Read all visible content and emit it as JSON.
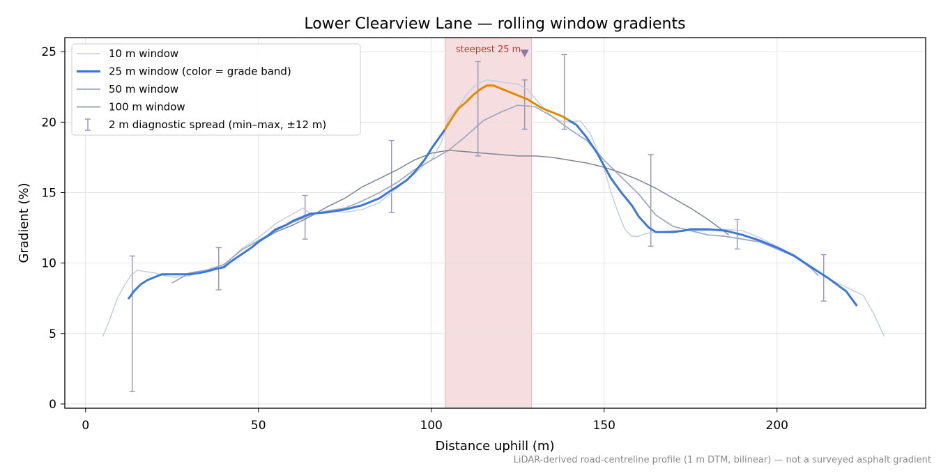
{
  "chart_data": {
    "type": "line",
    "title": "Lower Clearview Lane — rolling window gradients",
    "xlabel": "Distance uphill (m)",
    "ylabel": "Gradient (%)",
    "footnote": "LiDAR-derived road-centreline profile (1 m DTM, bilinear) — not a surveyed asphalt gradient",
    "xlim": [
      -6,
      243
    ],
    "ylim": [
      -0.3,
      26
    ],
    "x_ticks": [
      0,
      50,
      100,
      150,
      200
    ],
    "y_ticks": [
      0,
      5,
      10,
      15,
      20,
      25
    ],
    "grid": true,
    "legend_position": "upper left",
    "highlight": {
      "x_range": [
        104,
        129
      ],
      "label": "steepest 25 m",
      "marker_x": 127,
      "marker_y": 24.9,
      "color": "#f5dde0"
    },
    "series": [
      {
        "name": "10 m window",
        "color": "#c4cddb",
        "width": 1.5,
        "x": [
          5,
          7,
          9,
          11,
          13,
          15,
          17,
          20,
          23,
          26,
          30,
          35,
          40,
          45,
          50,
          55,
          60,
          63,
          65,
          70,
          75,
          80,
          85,
          90,
          95,
          98,
          100,
          103,
          105,
          108,
          110,
          113,
          116,
          119,
          122,
          125,
          128,
          131,
          134,
          137,
          140,
          143,
          146,
          148,
          150,
          152,
          154,
          156,
          158,
          160,
          162,
          165,
          170,
          175,
          180,
          185,
          190,
          195,
          200,
          205,
          210,
          215,
          220,
          225,
          228,
          231
        ],
        "y": [
          4.8,
          6.0,
          7.4,
          8.3,
          9.1,
          9.5,
          9.4,
          9.3,
          9.1,
          9.0,
          9.1,
          9.5,
          9.8,
          11.0,
          11.8,
          12.8,
          13.5,
          13.9,
          13.5,
          13.7,
          13.6,
          13.8,
          14.3,
          15.3,
          16.3,
          17.0,
          17.3,
          18.6,
          20.3,
          21.1,
          21.9,
          22.7,
          23.0,
          22.9,
          22.8,
          22.7,
          22.3,
          21.4,
          20.6,
          20.1,
          20.0,
          20.1,
          19.2,
          18.0,
          16.7,
          15.0,
          13.6,
          12.4,
          11.9,
          11.9,
          12.1,
          12.2,
          12.3,
          12.3,
          12.3,
          12.4,
          12.3,
          11.8,
          11.2,
          10.6,
          9.7,
          8.9,
          8.3,
          7.7,
          6.4,
          4.8
        ]
      },
      {
        "name": "25 m window (color = grade band)",
        "color": "#3a78d8",
        "highlight_color": "#e08a00",
        "highlight_threshold": 20,
        "width": 3,
        "x": [
          12.5,
          14,
          16,
          18,
          20,
          22,
          25,
          28,
          30,
          33,
          35,
          38,
          40,
          42,
          45,
          48,
          50,
          53,
          55,
          58,
          60,
          63,
          65,
          70,
          75,
          80,
          83,
          85,
          88,
          90,
          93,
          95,
          98,
          100,
          102,
          104,
          106,
          108,
          110,
          112,
          114,
          116,
          118,
          120,
          122,
          125,
          128,
          130,
          132,
          134,
          136,
          138,
          140,
          142,
          145,
          148,
          150,
          152,
          155,
          158,
          160,
          163,
          165,
          167,
          170,
          173,
          175,
          178,
          180,
          185,
          190,
          195,
          200,
          205,
          210,
          215,
          220,
          223
        ],
        "y": [
          7.5,
          8.0,
          8.5,
          8.8,
          9.0,
          9.2,
          9.2,
          9.2,
          9.2,
          9.3,
          9.4,
          9.6,
          9.7,
          10.1,
          10.6,
          11.1,
          11.5,
          12.0,
          12.4,
          12.7,
          13.0,
          13.3,
          13.5,
          13.6,
          13.8,
          14.1,
          14.4,
          14.6,
          15.1,
          15.4,
          15.9,
          16.4,
          17.3,
          18.1,
          18.8,
          19.5,
          20.3,
          21.0,
          21.4,
          21.9,
          22.3,
          22.6,
          22.6,
          22.4,
          22.2,
          21.9,
          21.6,
          21.3,
          21.0,
          20.8,
          20.6,
          20.4,
          20.1,
          19.8,
          18.9,
          17.8,
          16.9,
          16.0,
          15.0,
          14.1,
          13.3,
          12.5,
          12.2,
          12.2,
          12.2,
          12.3,
          12.4,
          12.4,
          12.4,
          12.3,
          12.0,
          11.6,
          11.1,
          10.5,
          9.7,
          8.9,
          8.0,
          7.0
        ]
      },
      {
        "name": "50 m window",
        "color": "#a0a9bd",
        "width": 1.8,
        "x": [
          25,
          28,
          30,
          35,
          40,
          45,
          50,
          55,
          60,
          65,
          70,
          75,
          80,
          85,
          90,
          95,
          100,
          105,
          110,
          115,
          120,
          125,
          130,
          135,
          140,
          145,
          150,
          155,
          160,
          165,
          170,
          175,
          180,
          185,
          190,
          195,
          200,
          205,
          210,
          212
        ],
        "y": [
          8.6,
          9.0,
          9.3,
          9.5,
          9.9,
          10.9,
          11.6,
          12.3,
          12.9,
          13.4,
          13.7,
          13.9,
          14.4,
          15.0,
          15.7,
          16.6,
          17.3,
          18.0,
          19.0,
          20.1,
          20.7,
          21.2,
          21.1,
          20.4,
          19.5,
          18.7,
          17.3,
          16.1,
          14.9,
          13.4,
          12.6,
          12.3,
          12.0,
          11.9,
          11.7,
          11.5,
          11.0,
          10.5,
          9.6,
          9.1
        ]
      },
      {
        "name": "100 m window",
        "color": "#7c8494",
        "width": 1.5,
        "x": [
          50,
          55,
          60,
          65,
          70,
          75,
          80,
          85,
          90,
          95,
          100,
          105,
          110,
          115,
          120,
          125,
          130,
          135,
          140,
          145,
          150,
          155,
          160,
          165,
          170,
          175,
          180,
          185,
          186
        ],
        "y": [
          11.5,
          12.2,
          12.7,
          13.3,
          14.0,
          14.6,
          15.4,
          16.0,
          16.6,
          17.3,
          17.8,
          18.0,
          17.9,
          17.8,
          17.7,
          17.6,
          17.6,
          17.5,
          17.3,
          17.1,
          16.8,
          16.4,
          15.9,
          15.3,
          14.6,
          13.9,
          13.1,
          12.2,
          12.0
        ]
      }
    ],
    "error_bars": {
      "name": "2 m diagnostic spread (min–max, ±12 m)",
      "color": "#9c98b8",
      "points": [
        {
          "x": 13.5,
          "low": 0.9,
          "high": 10.5
        },
        {
          "x": 38.5,
          "low": 8.1,
          "high": 11.1
        },
        {
          "x": 63.5,
          "low": 11.7,
          "high": 14.8
        },
        {
          "x": 88.5,
          "low": 13.6,
          "high": 18.7
        },
        {
          "x": 113.5,
          "low": 17.6,
          "high": 24.3
        },
        {
          "x": 127,
          "low": 19.5,
          "high": 23.0
        },
        {
          "x": 138.5,
          "low": 19.5,
          "high": 24.8
        },
        {
          "x": 163.5,
          "low": 11.2,
          "high": 17.7
        },
        {
          "x": 188.5,
          "low": 11.0,
          "high": 13.1
        },
        {
          "x": 213.5,
          "low": 7.3,
          "high": 10.6
        }
      ]
    }
  }
}
